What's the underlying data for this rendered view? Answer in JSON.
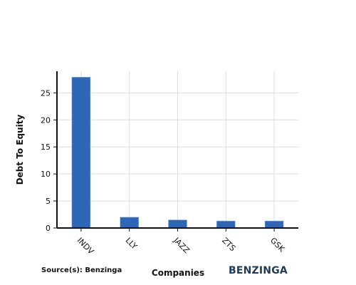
{
  "chart_data": {
    "type": "bar",
    "categories": [
      "INDV",
      "LLY",
      "JAZZ",
      "ZTS",
      "GSK"
    ],
    "values": [
      27.9,
      2.0,
      1.5,
      1.3,
      1.3
    ],
    "xlabel": "Companies",
    "ylabel": "Debt To Equity",
    "ylim": [
      0,
      29
    ],
    "yticks": [
      0,
      5,
      10,
      15,
      20,
      25
    ],
    "grid": true,
    "bar_color": "#2f67b8"
  },
  "footer": {
    "source": "Source(s): Benzinga",
    "brand": "BENZINGA"
  }
}
